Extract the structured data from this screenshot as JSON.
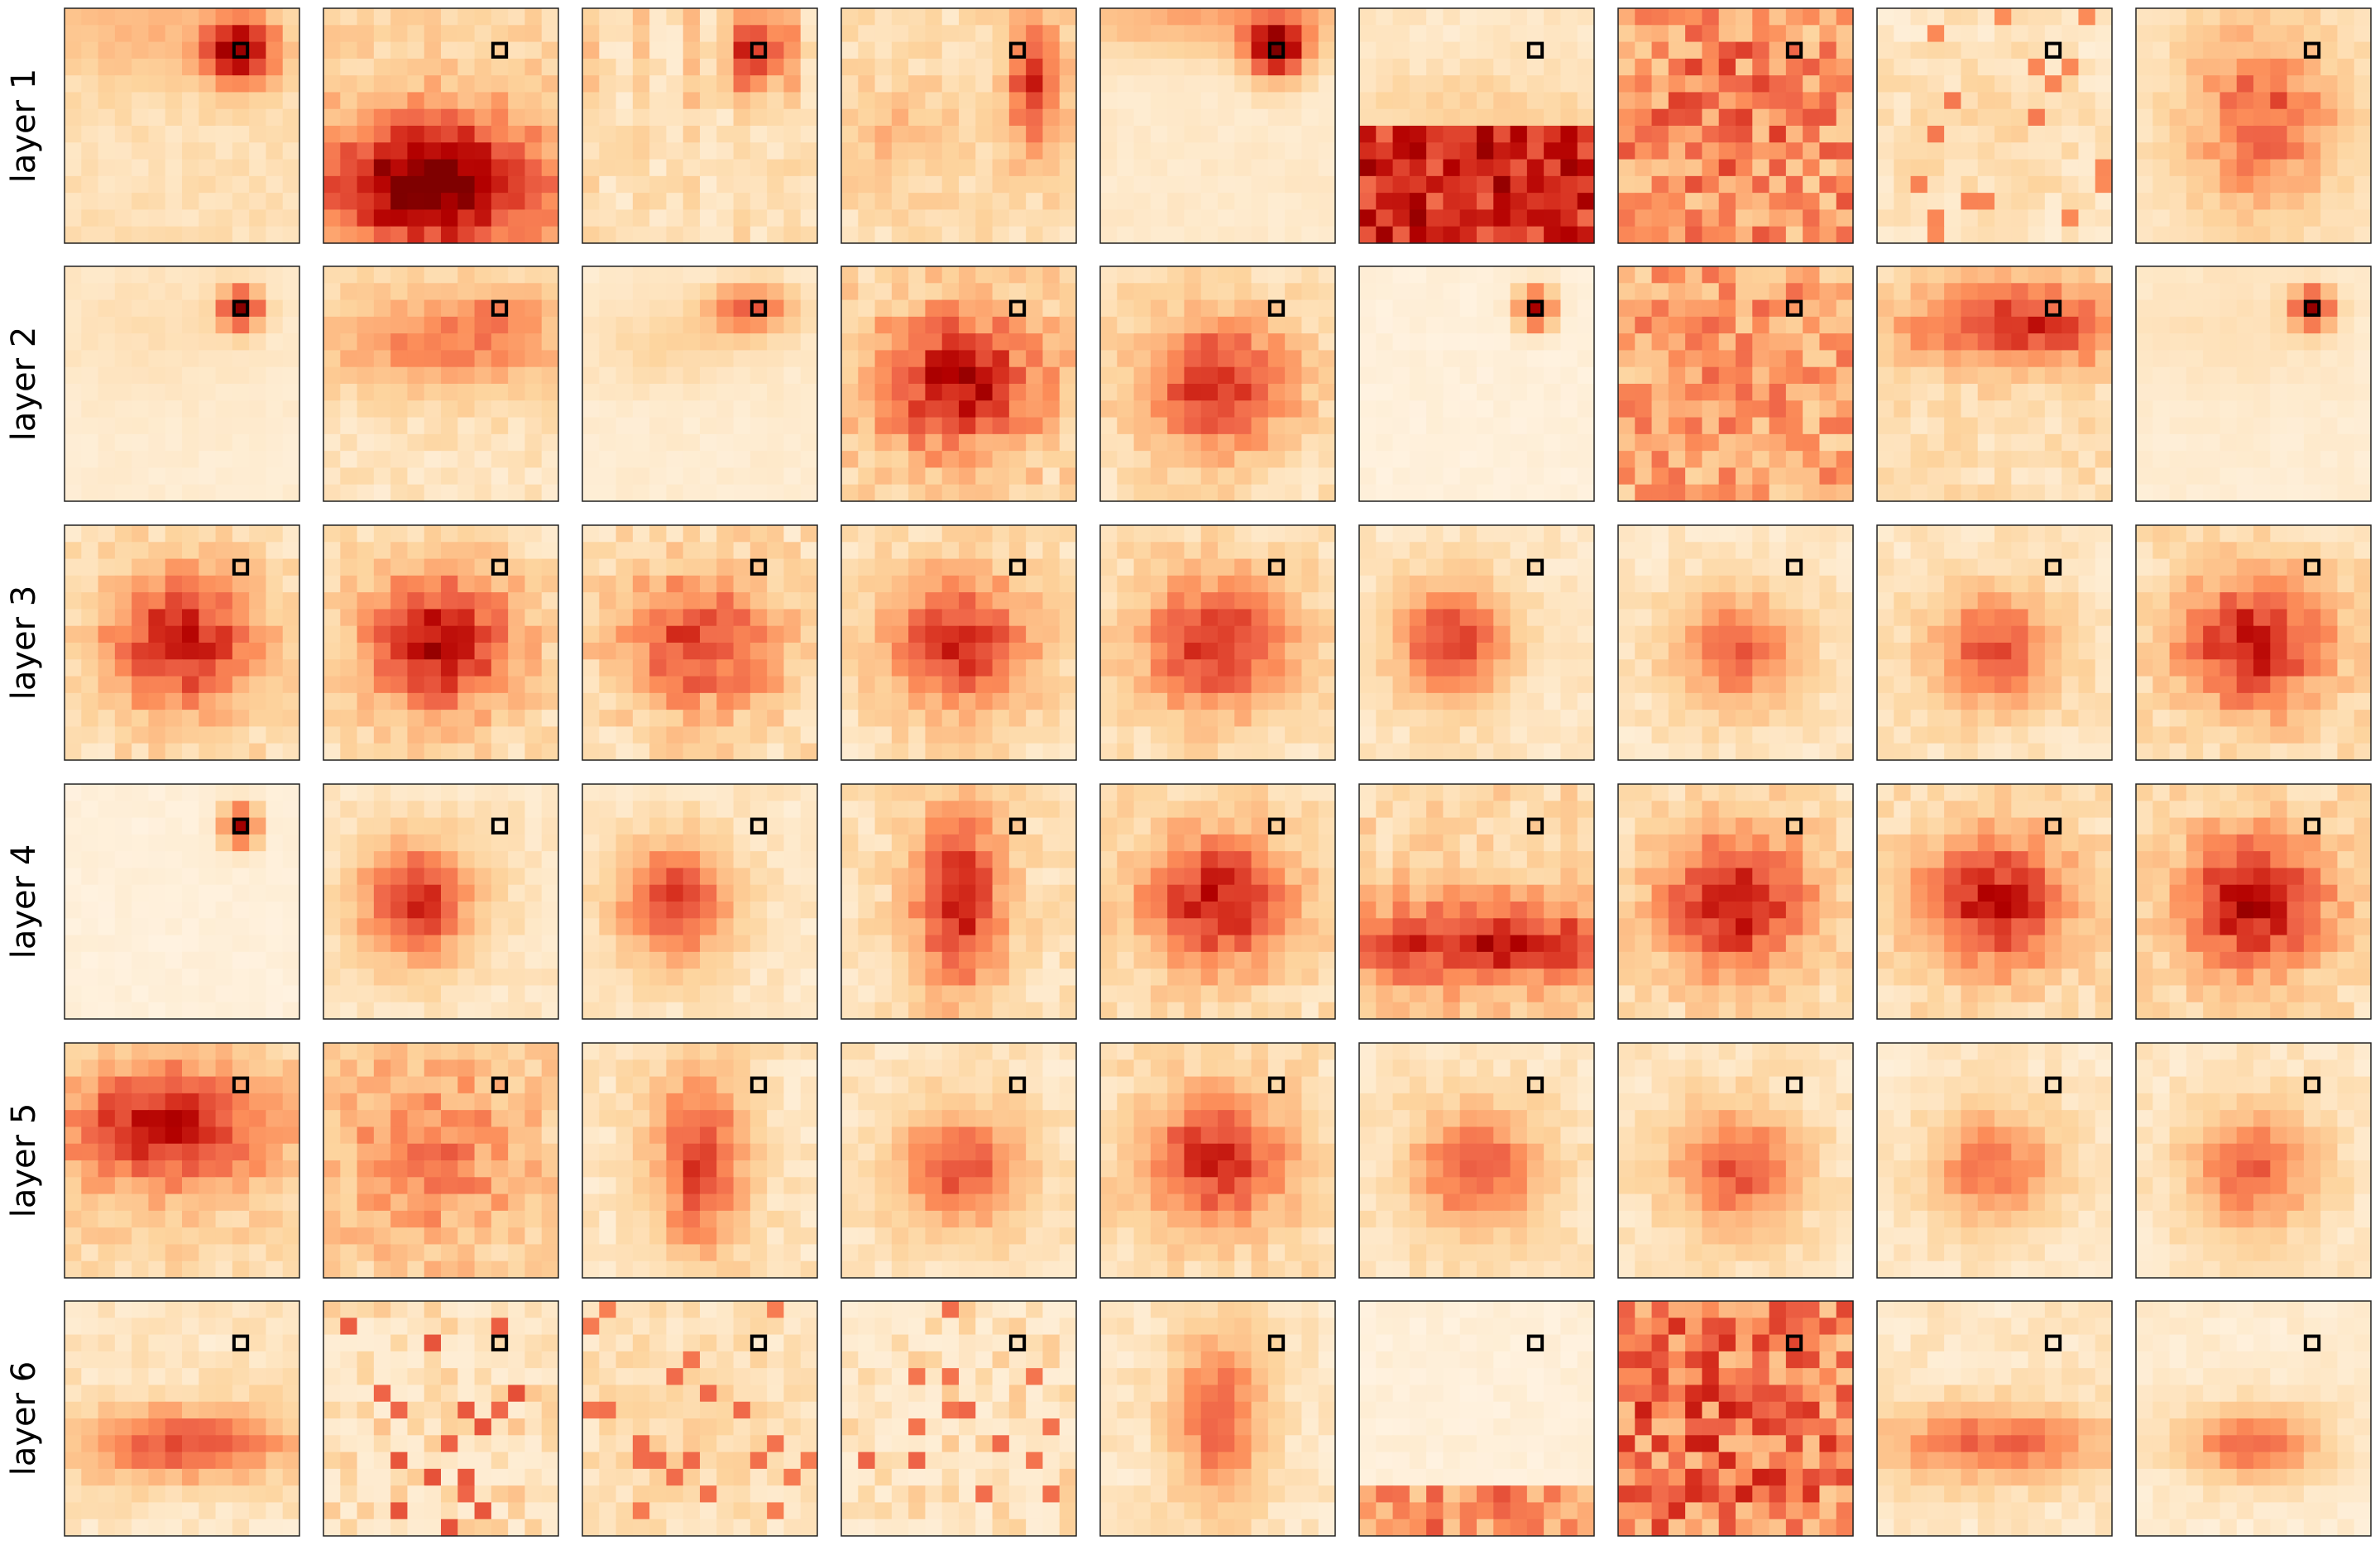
{
  "chart_data": {
    "type": "heatmap",
    "grid": {
      "rows": 6,
      "cols": 9,
      "cells_per_side": 14
    },
    "colormap": {
      "name": "OrRd",
      "stops": [
        "#fff7ec",
        "#fee8c8",
        "#fdd49e",
        "#fdbb84",
        "#fc8d59",
        "#ef6548",
        "#d7301f",
        "#b30000",
        "#7f0000"
      ]
    },
    "query_marker": {
      "row": 2,
      "col": 10,
      "color": "#000000"
    },
    "rows": [
      {
        "label": "layer 1",
        "panels": [
          {
            "pattern": "local-top-right",
            "intensity": 0.85
          },
          {
            "pattern": "bottom-mass",
            "intensity": 0.95
          },
          {
            "pattern": "local-top-right-streaks",
            "intensity": 0.75
          },
          {
            "pattern": "right-streak",
            "intensity": 0.7
          },
          {
            "pattern": "local-top-right-bright",
            "intensity": 0.9
          },
          {
            "pattern": "bottom-mass-strong",
            "intensity": 1.0
          },
          {
            "pattern": "noisy-diffuse",
            "intensity": 0.8
          },
          {
            "pattern": "sparse-diffuse",
            "intensity": 0.55
          },
          {
            "pattern": "center-cluster",
            "intensity": 0.75
          }
        ]
      },
      {
        "label": "layer 2",
        "panels": [
          {
            "pattern": "local-dot",
            "intensity": 0.9
          },
          {
            "pattern": "band-mid",
            "intensity": 0.7
          },
          {
            "pattern": "local-blob",
            "intensity": 0.7
          },
          {
            "pattern": "center-mass-noisy",
            "intensity": 0.9
          },
          {
            "pattern": "center-mass",
            "intensity": 0.8
          },
          {
            "pattern": "local-dot-faint",
            "intensity": 0.85
          },
          {
            "pattern": "noisy-diffuse",
            "intensity": 0.7
          },
          {
            "pattern": "band-upper",
            "intensity": 0.85
          },
          {
            "pattern": "local-dot",
            "intensity": 0.85
          }
        ]
      },
      {
        "label": "layer 3",
        "panels": [
          {
            "pattern": "center-mass",
            "intensity": 0.85
          },
          {
            "pattern": "center-mass",
            "intensity": 0.9
          },
          {
            "pattern": "center-mass-noisy",
            "intensity": 0.75
          },
          {
            "pattern": "center-mass",
            "intensity": 0.8
          },
          {
            "pattern": "center-mass",
            "intensity": 0.8
          },
          {
            "pattern": "center-left",
            "intensity": 0.75
          },
          {
            "pattern": "center-soft",
            "intensity": 0.7
          },
          {
            "pattern": "center-soft",
            "intensity": 0.75
          },
          {
            "pattern": "center-mass",
            "intensity": 0.85
          }
        ]
      },
      {
        "label": "layer 4",
        "panels": [
          {
            "pattern": "local-dot-faint",
            "intensity": 0.85
          },
          {
            "pattern": "center-left",
            "intensity": 0.8
          },
          {
            "pattern": "center-left",
            "intensity": 0.75
          },
          {
            "pattern": "vertical-center",
            "intensity": 0.85
          },
          {
            "pattern": "center-mass",
            "intensity": 0.85
          },
          {
            "pattern": "bottom-band",
            "intensity": 0.8
          },
          {
            "pattern": "center-mass",
            "intensity": 0.9
          },
          {
            "pattern": "center-mass",
            "intensity": 0.85
          },
          {
            "pattern": "center-mass",
            "intensity": 0.9
          }
        ]
      },
      {
        "label": "layer 5",
        "panels": [
          {
            "pattern": "upper-left-mass",
            "intensity": 0.85
          },
          {
            "pattern": "scattered",
            "intensity": 0.7
          },
          {
            "pattern": "vertical-center",
            "intensity": 0.75
          },
          {
            "pattern": "center-soft",
            "intensity": 0.75
          },
          {
            "pattern": "center-mass",
            "intensity": 0.8
          },
          {
            "pattern": "center-soft",
            "intensity": 0.75
          },
          {
            "pattern": "center-soft",
            "intensity": 0.75
          },
          {
            "pattern": "center-soft",
            "intensity": 0.65
          },
          {
            "pattern": "center-soft",
            "intensity": 0.7
          }
        ]
      },
      {
        "label": "layer 6",
        "panels": [
          {
            "pattern": "lower-band",
            "intensity": 0.75
          },
          {
            "pattern": "sparse-noisy",
            "intensity": 0.7
          },
          {
            "pattern": "sparse-diffuse",
            "intensity": 0.6
          },
          {
            "pattern": "sparse-noisy",
            "intensity": 0.65
          },
          {
            "pattern": "vertical-center",
            "intensity": 0.65
          },
          {
            "pattern": "bottom-edge",
            "intensity": 0.8
          },
          {
            "pattern": "noisy-diffuse",
            "intensity": 0.9
          },
          {
            "pattern": "lower-band",
            "intensity": 0.7
          },
          {
            "pattern": "lower-band-center",
            "intensity": 0.7
          }
        ]
      }
    ],
    "axes": {
      "ticks": "none",
      "frame": true
    }
  }
}
